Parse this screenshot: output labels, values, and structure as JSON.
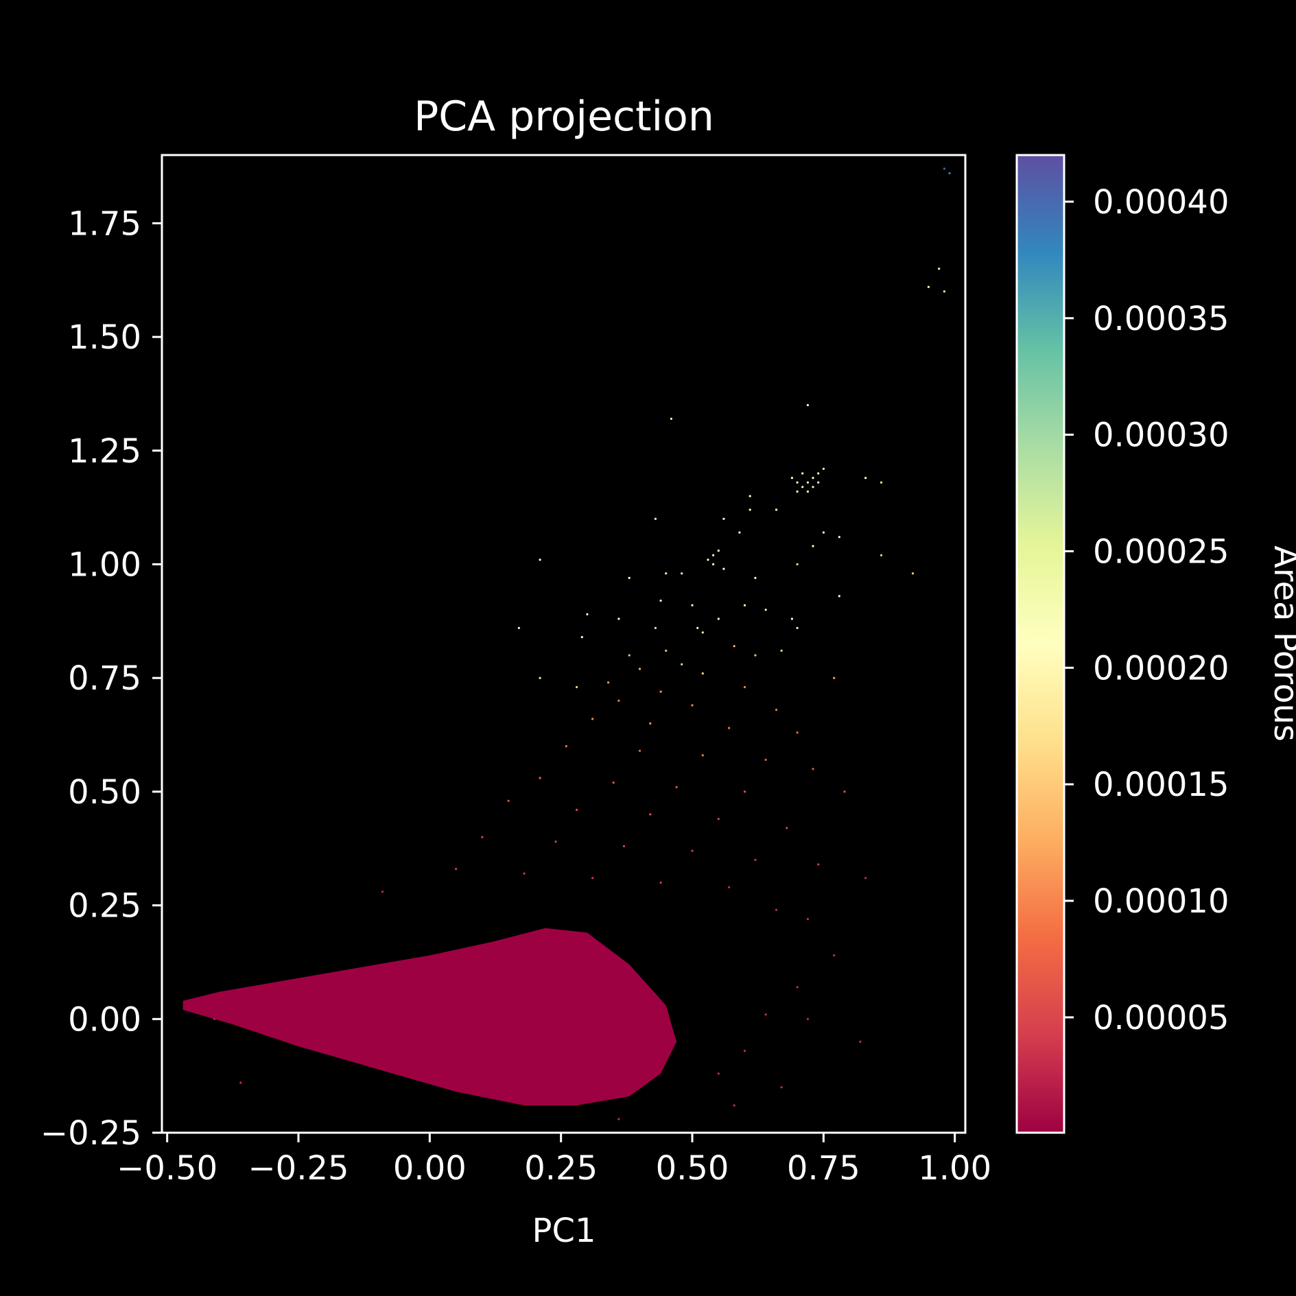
{
  "chart_data": {
    "type": "scatter",
    "title": "PCA projection",
    "xlabel": "PC1",
    "ylabel": "",
    "xlim": [
      -0.51,
      1.02
    ],
    "ylim": [
      -0.25,
      1.9
    ],
    "x_ticks": [
      -0.5,
      -0.25,
      0.0,
      0.25,
      0.5,
      0.75,
      1.0
    ],
    "x_tick_labels": [
      "−0.50",
      "−0.25",
      "0.00",
      "0.25",
      "0.50",
      "0.75",
      "1.00"
    ],
    "y_ticks": [
      -0.25,
      0.0,
      0.25,
      0.5,
      0.75,
      1.0,
      1.25,
      1.5,
      1.75
    ],
    "y_tick_labels": [
      "−0.25",
      "0.00",
      "0.25",
      "0.50",
      "0.75",
      "1.00",
      "1.25",
      "1.50",
      "1.75"
    ],
    "grid": false,
    "background": "#000000",
    "colorbar": {
      "label": "Area Porous",
      "colormap": "Spectral",
      "range": [
        5e-07,
        0.00042
      ],
      "ticks": [
        5e-05,
        0.0001,
        0.00015,
        0.0002,
        0.00025,
        0.0003,
        0.00035,
        0.0004
      ],
      "tick_labels": [
        "0.00005",
        "0.00010",
        "0.00015",
        "0.00020",
        "0.00025",
        "0.00030",
        "0.00035",
        "0.00040"
      ],
      "colors": [
        "#9e0142",
        "#d53e4f",
        "#f46d43",
        "#fdae61",
        "#fee08b",
        "#ffffbf",
        "#e6f598",
        "#abdda4",
        "#66c2a5",
        "#3288bd",
        "#5e4fa2"
      ]
    },
    "dense_cluster": {
      "description_color": "#9e0142",
      "outline": [
        [
          -0.47,
          0.04
        ],
        [
          -0.4,
          0.06
        ],
        [
          -0.3,
          0.08
        ],
        [
          -0.15,
          0.11
        ],
        [
          0.0,
          0.14
        ],
        [
          0.12,
          0.17
        ],
        [
          0.22,
          0.2
        ],
        [
          0.3,
          0.19
        ],
        [
          0.38,
          0.12
        ],
        [
          0.45,
          0.03
        ],
        [
          0.47,
          -0.05
        ],
        [
          0.44,
          -0.12
        ],
        [
          0.38,
          -0.17
        ],
        [
          0.28,
          -0.19
        ],
        [
          0.18,
          -0.19
        ],
        [
          0.05,
          -0.16
        ],
        [
          -0.1,
          -0.11
        ],
        [
          -0.25,
          -0.06
        ],
        [
          -0.38,
          -0.01
        ],
        [
          -0.47,
          0.02
        ]
      ]
    },
    "points": [
      [
        0.98,
        1.87,
        0.00041
      ],
      [
        0.99,
        1.86,
        0.00038
      ],
      [
        0.97,
        1.65,
        0.0002
      ],
      [
        0.95,
        1.61,
        0.00021
      ],
      [
        0.98,
        1.6,
        0.0002
      ],
      [
        0.72,
        1.35,
        0.00021
      ],
      [
        0.46,
        1.32,
        0.0002
      ],
      [
        0.69,
        1.19,
        0.00021
      ],
      [
        0.7,
        1.18,
        0.00021
      ],
      [
        0.71,
        1.17,
        0.00021
      ],
      [
        0.72,
        1.18,
        0.00021
      ],
      [
        0.73,
        1.19,
        0.00021
      ],
      [
        0.74,
        1.2,
        0.00021
      ],
      [
        0.75,
        1.21,
        0.00021
      ],
      [
        0.72,
        1.16,
        0.00021
      ],
      [
        0.73,
        1.17,
        0.00021
      ],
      [
        0.74,
        1.18,
        0.00021
      ],
      [
        0.71,
        1.2,
        0.00021
      ],
      [
        0.7,
        1.16,
        0.00021
      ],
      [
        0.83,
        1.19,
        0.00021
      ],
      [
        0.86,
        1.18,
        0.00018
      ],
      [
        0.61,
        1.15,
        0.00021
      ],
      [
        0.61,
        1.12,
        0.00021
      ],
      [
        0.66,
        1.12,
        0.00021
      ],
      [
        0.56,
        1.1,
        0.00021
      ],
      [
        0.43,
        1.1,
        0.00021
      ],
      [
        0.59,
        1.07,
        0.00021
      ],
      [
        0.75,
        1.07,
        0.00021
      ],
      [
        0.78,
        1.06,
        0.00021
      ],
      [
        0.73,
        1.04,
        0.00021
      ],
      [
        0.53,
        1.01,
        0.00021
      ],
      [
        0.54,
        1.02,
        0.00021
      ],
      [
        0.55,
        1.03,
        0.00021
      ],
      [
        0.54,
        1.0,
        0.00021
      ],
      [
        0.21,
        1.01,
        0.00021
      ],
      [
        0.86,
        1.02,
        0.00016
      ],
      [
        0.7,
        1.0,
        0.00016
      ],
      [
        0.56,
        0.99,
        0.00021
      ],
      [
        0.45,
        0.98,
        0.00021
      ],
      [
        0.48,
        0.98,
        0.00021
      ],
      [
        0.38,
        0.97,
        0.00021
      ],
      [
        0.62,
        0.97,
        0.00021
      ],
      [
        0.92,
        0.98,
        0.00016
      ],
      [
        0.78,
        0.93,
        0.00021
      ],
      [
        0.64,
        0.9,
        0.00021
      ],
      [
        0.6,
        0.91,
        0.00021
      ],
      [
        0.5,
        0.91,
        0.00021
      ],
      [
        0.44,
        0.92,
        0.00021
      ],
      [
        0.3,
        0.89,
        0.00021
      ],
      [
        0.36,
        0.88,
        0.00021
      ],
      [
        0.55,
        0.88,
        0.00021
      ],
      [
        0.69,
        0.88,
        0.00021
      ],
      [
        0.51,
        0.86,
        0.00021
      ],
      [
        0.17,
        0.86,
        0.00021
      ],
      [
        0.43,
        0.86,
        0.00018
      ],
      [
        0.52,
        0.85,
        0.00018
      ],
      [
        0.29,
        0.84,
        0.00021
      ],
      [
        0.7,
        0.86,
        0.00021
      ],
      [
        0.38,
        0.8,
        0.00014
      ],
      [
        0.45,
        0.81,
        0.00014
      ],
      [
        0.58,
        0.82,
        0.00014
      ],
      [
        0.62,
        0.8,
        0.00014
      ],
      [
        0.67,
        0.81,
        0.00016
      ],
      [
        0.4,
        0.77,
        0.00013
      ],
      [
        0.48,
        0.78,
        0.00016
      ],
      [
        0.52,
        0.76,
        0.00016
      ],
      [
        0.77,
        0.75,
        0.00012
      ],
      [
        0.21,
        0.75,
        0.00018
      ],
      [
        0.28,
        0.73,
        0.00016
      ],
      [
        0.34,
        0.74,
        0.00012
      ],
      [
        0.44,
        0.72,
        0.00011
      ],
      [
        0.6,
        0.73,
        0.0001
      ],
      [
        0.36,
        0.7,
        0.0001
      ],
      [
        0.5,
        0.69,
        0.0001
      ],
      [
        0.66,
        0.68,
        9e-05
      ],
      [
        0.31,
        0.66,
        0.0001
      ],
      [
        0.42,
        0.65,
        0.00011
      ],
      [
        0.57,
        0.64,
        9e-05
      ],
      [
        0.7,
        0.63,
        8e-05
      ],
      [
        0.26,
        0.6,
        9e-05
      ],
      [
        0.4,
        0.59,
        8e-05
      ],
      [
        0.52,
        0.58,
        9e-05
      ],
      [
        0.64,
        0.57,
        7e-05
      ],
      [
        0.73,
        0.55,
        7e-05
      ],
      [
        0.21,
        0.53,
        8e-05
      ],
      [
        0.35,
        0.52,
        7e-05
      ],
      [
        0.47,
        0.51,
        7e-05
      ],
      [
        0.6,
        0.5,
        6e-05
      ],
      [
        0.79,
        0.5,
        6e-05
      ],
      [
        0.15,
        0.48,
        6e-05
      ],
      [
        0.28,
        0.46,
        6e-05
      ],
      [
        0.42,
        0.45,
        6e-05
      ],
      [
        0.55,
        0.44,
        5e-05
      ],
      [
        0.68,
        0.42,
        5e-05
      ],
      [
        0.1,
        0.4,
        5e-05
      ],
      [
        0.24,
        0.39,
        5e-05
      ],
      [
        0.37,
        0.38,
        5e-05
      ],
      [
        0.5,
        0.37,
        4e-05
      ],
      [
        0.62,
        0.35,
        4e-05
      ],
      [
        0.74,
        0.34,
        4e-05
      ],
      [
        0.05,
        0.33,
        4e-05
      ],
      [
        0.18,
        0.32,
        4e-05
      ],
      [
        0.31,
        0.31,
        4e-05
      ],
      [
        0.44,
        0.3,
        4e-05
      ],
      [
        0.57,
        0.29,
        3e-05
      ],
      [
        0.83,
        0.31,
        3e-05
      ],
      [
        -0.09,
        0.28,
        3e-05
      ],
      [
        0.66,
        0.24,
        3e-05
      ],
      [
        0.72,
        0.22,
        3e-05
      ],
      [
        0.77,
        0.14,
        3e-05
      ],
      [
        0.7,
        0.07,
        3e-05
      ],
      [
        0.64,
        0.01,
        3e-05
      ],
      [
        0.72,
        0.0,
        3e-05
      ],
      [
        0.6,
        -0.07,
        3e-05
      ],
      [
        0.55,
        -0.12,
        3e-05
      ],
      [
        0.67,
        -0.15,
        3e-05
      ],
      [
        0.58,
        -0.19,
        3e-05
      ],
      [
        0.82,
        -0.05,
        3e-05
      ],
      [
        0.36,
        -0.22,
        3e-05
      ],
      [
        0.16,
        -0.25,
        3e-05
      ],
      [
        -0.36,
        -0.14,
        3e-05
      ],
      [
        -0.41,
        0.0,
        2e-05
      ]
    ]
  }
}
